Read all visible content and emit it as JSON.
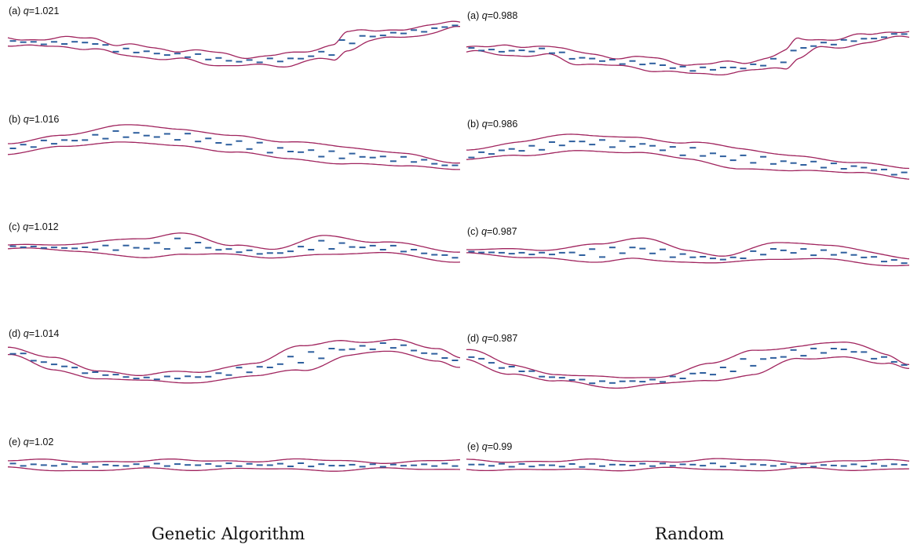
{
  "columns": [
    {
      "caption": "Genetic Algorithm",
      "panels": [
        {
          "prefix": "(a)",
          "q_symbol": "q",
          "q_value": "=1.021",
          "shape": "a"
        },
        {
          "prefix": "(b)",
          "q_symbol": "q",
          "q_value": "=1.016",
          "shape": "b"
        },
        {
          "prefix": "(c)",
          "q_symbol": "q",
          "q_value": "=1.012",
          "shape": "c"
        },
        {
          "prefix": "(d)",
          "q_symbol": "q",
          "q_value": "=1.014",
          "shape": "d"
        },
        {
          "prefix": "(e)",
          "q_symbol": "q",
          "q_value": "=1.02",
          "shape": "e"
        }
      ]
    },
    {
      "caption": "Random",
      "panels": [
        {
          "prefix": "(a)",
          "q_symbol": "q",
          "q_value": "=0.988",
          "shape": "a"
        },
        {
          "prefix": "(b)",
          "q_symbol": "q",
          "q_value": "=0.986",
          "shape": "b"
        },
        {
          "prefix": "(c)",
          "q_symbol": "q",
          "q_value": "=0.987",
          "shape": "c"
        },
        {
          "prefix": "(d)",
          "q_symbol": "q",
          "q_value": "=0.987",
          "shape": "d"
        },
        {
          "prefix": "(e)",
          "q_symbol": "q",
          "q_value": "=0.99",
          "shape": "e"
        }
      ]
    }
  ],
  "colors": {
    "wall": "#a0245e",
    "marker": "#2e5f9e",
    "text": "#111111"
  }
}
